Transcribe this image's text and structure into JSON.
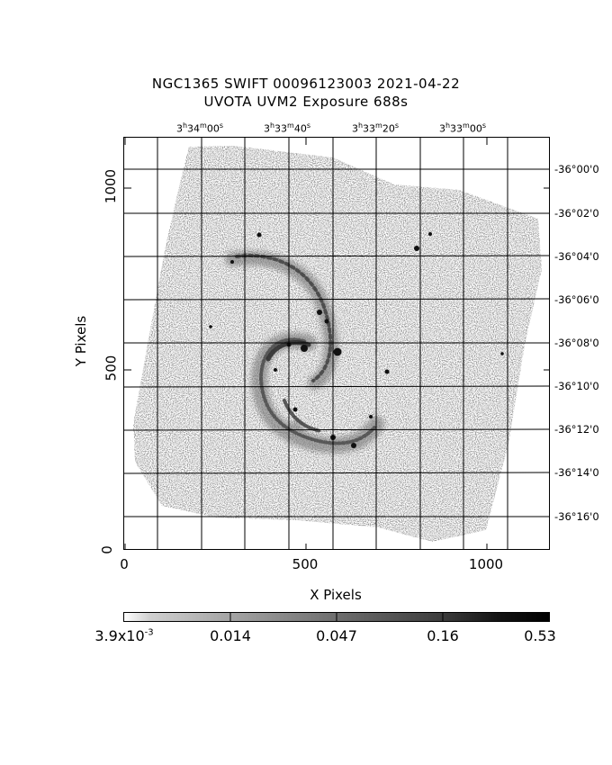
{
  "title_line1": "NGC1365 SWIFT 00096123003 2021-04-22",
  "title_line2": "UVOTA UVM2 Exposure        688s",
  "ra_ticks": [
    {
      "h": "3",
      "m": "34",
      "s": "00"
    },
    {
      "h": "3",
      "m": "33",
      "s": "40"
    },
    {
      "h": "3",
      "m": "33",
      "s": "20"
    },
    {
      "h": "3",
      "m": "33",
      "s": "00"
    }
  ],
  "dec_ticks": [
    "-36°00'0",
    "-36°02'0",
    "-36°04'0",
    "-36°06'0",
    "-36°08'0",
    "-36°10'0",
    "-36°12'0",
    "-36°14'0",
    "-36°16'0"
  ],
  "x_ticks": [
    "0",
    "500",
    "1000"
  ],
  "y_ticks": [
    "0",
    "500",
    "1000"
  ],
  "xlabel": "X Pixels",
  "ylabel": "Y Pixels",
  "colorbar": {
    "labels": [
      "0.014",
      "0.047",
      "0.16",
      "0.53"
    ],
    "first_label_base": "3.9x10",
    "first_label_exp": "-3"
  },
  "colors": {
    "ink": "#000000",
    "field": "#9a9a9a",
    "background": "#ffffff"
  }
}
